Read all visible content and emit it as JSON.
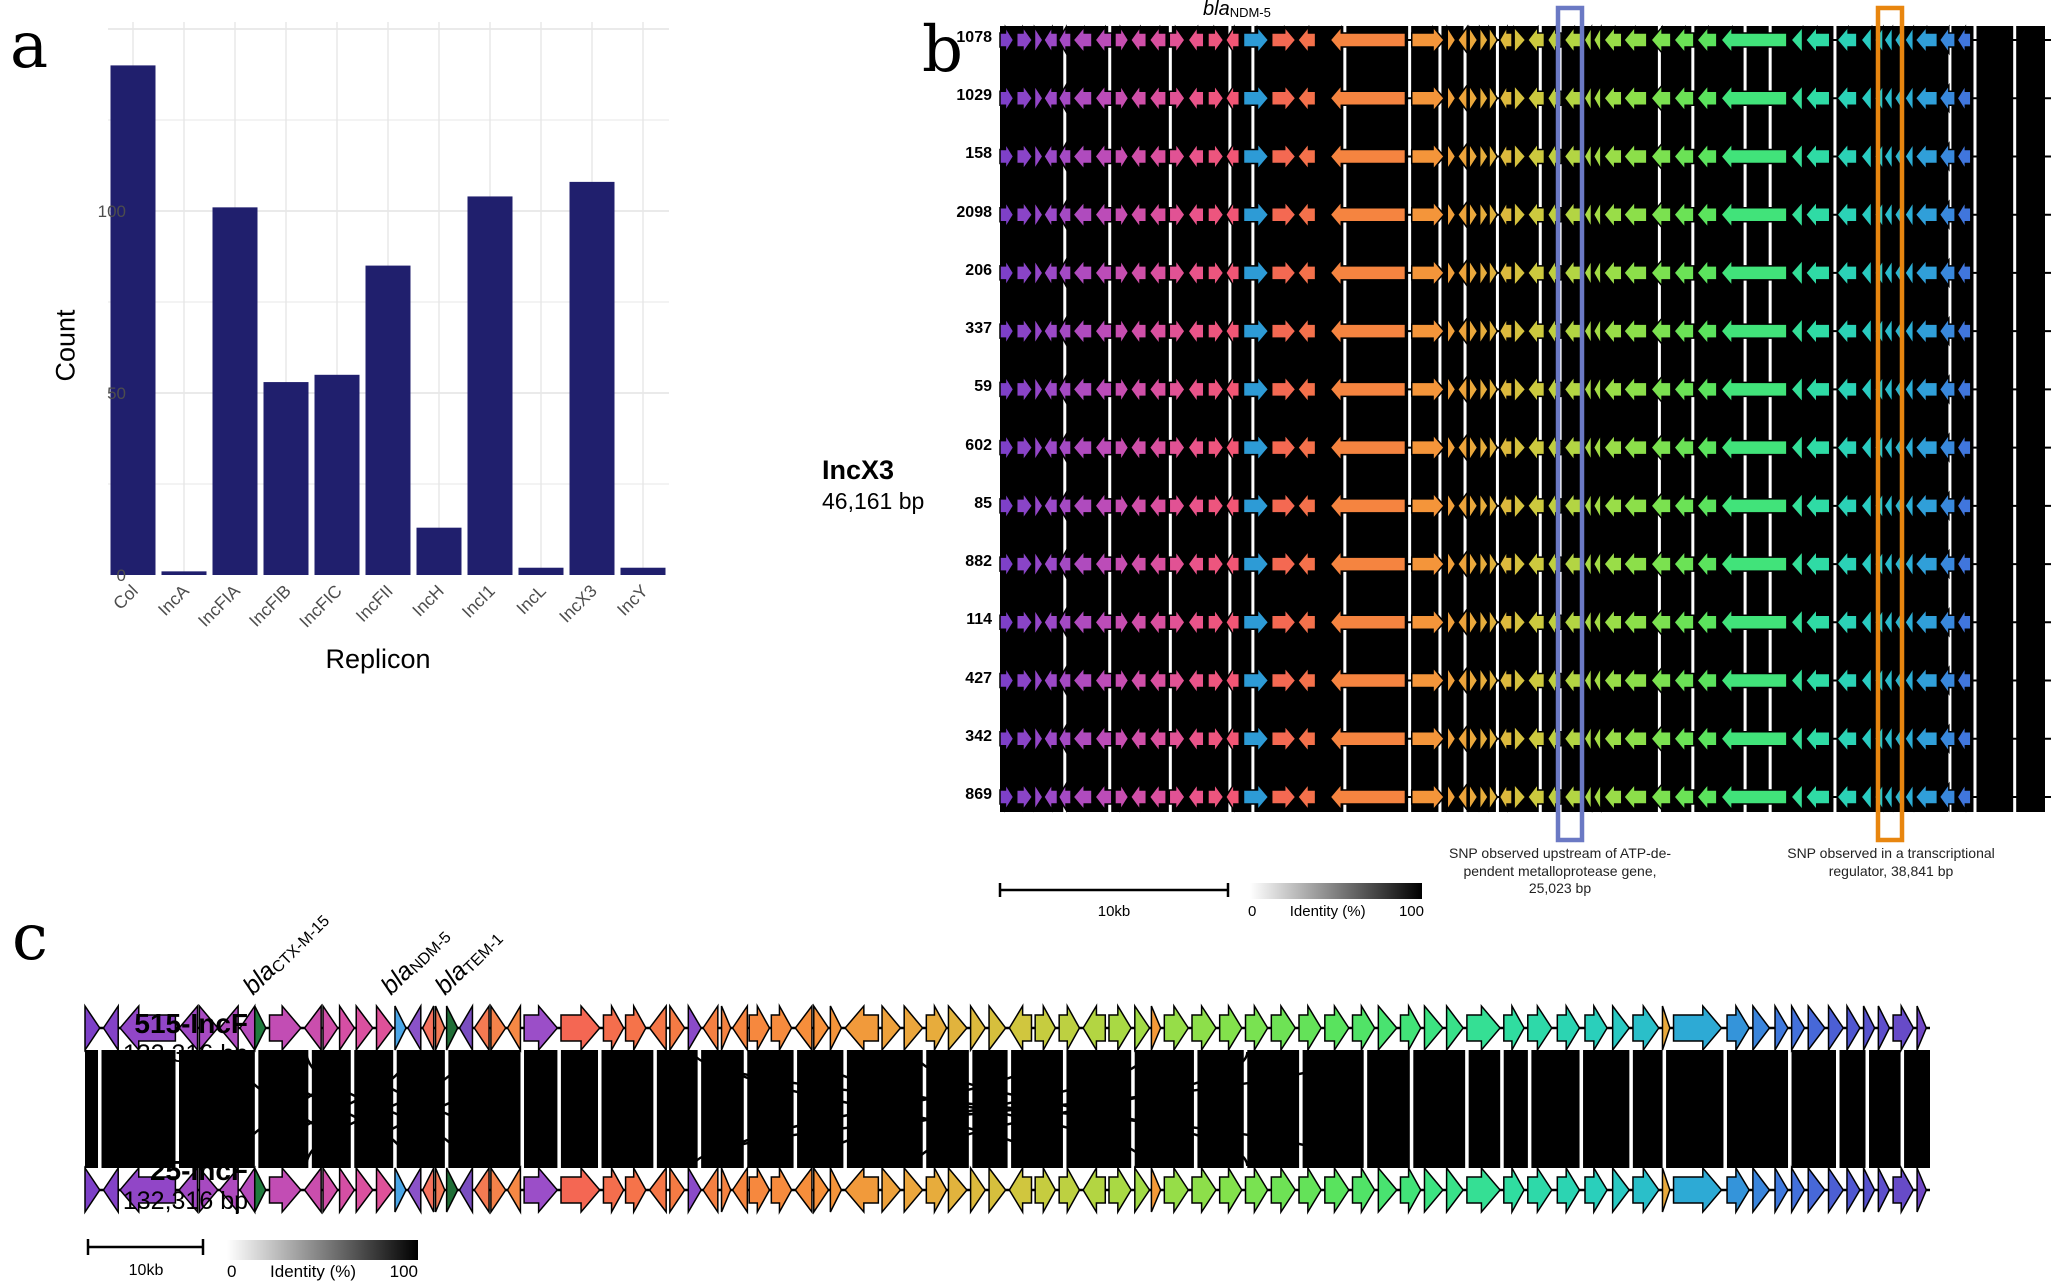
{
  "figure": {
    "panel_letters": {
      "a": "a",
      "b": "b",
      "c": "c"
    }
  },
  "chart_data": {
    "type": "bar",
    "title": "",
    "categories": [
      "Col",
      "IncA",
      "IncFIA",
      "IncFIB",
      "IncFIC",
      "IncFII",
      "IncH",
      "IncI1",
      "IncL",
      "IncX3",
      "IncY"
    ],
    "values": [
      140,
      1,
      101,
      53,
      55,
      85,
      13,
      104,
      2,
      108,
      2
    ],
    "xlabel": "Replicon",
    "ylabel": "Count",
    "yticks": [
      0,
      50,
      100
    ],
    "gridline_step": 25,
    "ylim": [
      0,
      150
    ],
    "bar_color": "#201f6d",
    "grid": true,
    "legend": "none"
  },
  "panel_b": {
    "name": "IncX3",
    "size_label": "46,161 bp",
    "gene_annotation": {
      "prefix": "bla",
      "sub": "NDM-5"
    },
    "row_labels": [
      "1078",
      "1029",
      "158",
      "2098",
      "206",
      "337",
      "59",
      "602",
      "85",
      "882",
      "114",
      "427",
      "342",
      "869"
    ],
    "highlight_boxes": [
      {
        "color": "#6b79c4",
        "note": "SNP observed upstream of ATP-de-\npendent metalloprotease gene,\n25,023 bp"
      },
      {
        "color": "#e8860f",
        "note": "SNP observed in a transcriptional\nregulator, 38,841 bp"
      }
    ],
    "scale_label": "10kb",
    "identity_legend": {
      "min": "0",
      "label": "Identity (%)",
      "max": "100"
    },
    "genes": [
      [
        0.0,
        0.013,
        1
      ],
      [
        0.016,
        0.015,
        1
      ],
      [
        0.033,
        0.008,
        1
      ],
      [
        0.042,
        0.013,
        -1
      ],
      [
        0.056,
        0.012,
        -1
      ],
      [
        0.07,
        0.018,
        -1
      ],
      [
        0.091,
        0.016,
        -1
      ],
      [
        0.11,
        0.013,
        1
      ],
      [
        0.125,
        0.015,
        -1
      ],
      [
        0.143,
        0.016,
        -1
      ],
      [
        0.162,
        0.015,
        1
      ],
      [
        0.18,
        0.015,
        -1
      ],
      [
        0.199,
        0.015,
        1
      ],
      [
        0.216,
        0.013,
        -1
      ],
      [
        0.233,
        0.024,
        1,
        "#2d9bd6"
      ],
      [
        0.26,
        0.023,
        1
      ],
      [
        0.285,
        0.017,
        -1
      ],
      [
        0.316,
        0.072,
        -1
      ],
      [
        0.394,
        0.031,
        1
      ],
      [
        0.428,
        0.008,
        1
      ],
      [
        0.438,
        0.009,
        -1
      ],
      [
        0.449,
        0.008,
        1
      ],
      [
        0.459,
        0.008,
        1
      ],
      [
        0.468,
        0.008,
        1
      ],
      [
        0.478,
        0.012,
        -1
      ],
      [
        0.492,
        0.011,
        1
      ],
      [
        0.505,
        0.016,
        -1
      ],
      [
        0.524,
        0.013,
        -1
      ],
      [
        0.54,
        0.016,
        -1
      ],
      [
        0.559,
        0.007,
        -1
      ],
      [
        0.568,
        0.007,
        -1
      ],
      [
        0.578,
        0.017,
        -1
      ],
      [
        0.597,
        0.022,
        -1
      ],
      [
        0.623,
        0.019,
        -1
      ],
      [
        0.645,
        0.019,
        -1
      ],
      [
        0.667,
        0.019,
        -1
      ],
      [
        0.69,
        0.063,
        -1
      ],
      [
        0.757,
        0.011,
        -1
      ],
      [
        0.771,
        0.023,
        -1
      ],
      [
        0.801,
        0.019,
        -1
      ],
      [
        0.824,
        0.01,
        -1
      ],
      [
        0.837,
        0.008,
        -1
      ],
      [
        0.846,
        0.008,
        -1
      ],
      [
        0.856,
        0.008,
        -1
      ],
      [
        0.866,
        0.008,
        -1
      ],
      [
        0.876,
        0.021,
        -1
      ],
      [
        0.899,
        0.015,
        -1
      ],
      [
        0.916,
        0.013,
        -1
      ]
    ],
    "gaps": [
      0.062,
      0.105,
      0.163,
      0.22,
      0.242,
      0.33,
      0.392,
      0.421,
      0.445,
      0.476,
      0.517,
      0.536,
      0.631,
      0.663,
      0.713,
      0.737,
      0.799,
      0.909,
      0.933,
      0.971
    ]
  },
  "panel_c": {
    "tracks": [
      {
        "name": "515-IncF",
        "size": "132,316 bp"
      },
      {
        "name": "25-IncF",
        "size": "132,316 bp"
      }
    ],
    "gene_annotations": [
      {
        "prefix": "bla",
        "sub": "CTX-M-15"
      },
      {
        "prefix": "bla",
        "sub": "NDM-5"
      },
      {
        "prefix": "bla",
        "sub": "TEM-1"
      }
    ],
    "scale_label": "10kb",
    "identity_legend": {
      "min": "0",
      "label": "Identity (%)",
      "max": "100"
    },
    "genes": [
      [
        0.0,
        0.008,
        1
      ],
      [
        0.01,
        0.008,
        -1
      ],
      [
        0.019,
        0.03,
        -1
      ],
      [
        0.051,
        0.01,
        -1
      ],
      [
        0.062,
        0.01,
        1
      ],
      [
        0.073,
        0.01,
        -1
      ],
      [
        0.084,
        0.008,
        -1
      ],
      [
        0.092,
        0.006,
        1,
        "#1e7a3c"
      ],
      [
        0.1,
        0.017,
        1
      ],
      [
        0.119,
        0.009,
        -1
      ],
      [
        0.129,
        0.008,
        1
      ],
      [
        0.138,
        0.008,
        1
      ],
      [
        0.147,
        0.009,
        1
      ],
      [
        0.158,
        0.009,
        1
      ],
      [
        0.168,
        0.006,
        1,
        "#4aa6e8"
      ],
      [
        0.175,
        0.007,
        -1,
        "#8a52c8"
      ],
      [
        0.183,
        0.006,
        -1,
        "#f4725e"
      ],
      [
        0.19,
        0.005,
        1,
        "#f27a56"
      ],
      [
        0.196,
        0.006,
        1,
        "#1f6e36"
      ],
      [
        0.203,
        0.007,
        -1,
        "#7a4ec0"
      ],
      [
        0.211,
        0.008,
        -1,
        "#f57a52"
      ],
      [
        0.22,
        0.008,
        1,
        "#f5824a"
      ],
      [
        0.229,
        0.007,
        -1,
        "#f58844"
      ],
      [
        0.238,
        0.018,
        1,
        "#9b4ec8"
      ],
      [
        0.258,
        0.021,
        1
      ],
      [
        0.281,
        0.011,
        1
      ],
      [
        0.293,
        0.011,
        1
      ],
      [
        0.306,
        0.009,
        -1
      ],
      [
        0.317,
        0.008,
        1
      ],
      [
        0.327,
        0.007,
        1,
        "#8a4ac8"
      ],
      [
        0.335,
        0.008,
        -1
      ],
      [
        0.345,
        0.005,
        1
      ],
      [
        0.351,
        0.008,
        -1
      ],
      [
        0.36,
        0.011,
        1
      ],
      [
        0.372,
        0.011,
        1
      ],
      [
        0.385,
        0.009,
        -1
      ],
      [
        0.395,
        0.008,
        1
      ],
      [
        0.404,
        0.006,
        1
      ],
      [
        0.412,
        0.018,
        -1
      ],
      [
        0.432,
        0.01,
        1
      ],
      [
        0.444,
        0.01,
        1
      ],
      [
        0.456,
        0.011,
        1
      ],
      [
        0.468,
        0.01,
        1
      ],
      [
        0.48,
        0.008,
        1
      ],
      [
        0.49,
        0.009,
        1
      ],
      [
        0.501,
        0.012,
        -1
      ],
      [
        0.515,
        0.011,
        1
      ],
      [
        0.528,
        0.011,
        1
      ],
      [
        0.541,
        0.012,
        -1
      ],
      [
        0.555,
        0.012,
        1
      ],
      [
        0.569,
        0.008,
        1
      ],
      [
        0.578,
        0.005,
        1,
        "#f59a38"
      ],
      [
        0.585,
        0.013,
        1
      ],
      [
        0.6,
        0.013,
        1
      ],
      [
        0.615,
        0.012,
        1
      ],
      [
        0.629,
        0.012,
        1
      ],
      [
        0.643,
        0.013,
        1
      ],
      [
        0.658,
        0.012,
        1
      ],
      [
        0.672,
        0.013,
        1
      ],
      [
        0.687,
        0.012,
        1
      ],
      [
        0.701,
        0.01,
        1
      ],
      [
        0.713,
        0.011,
        1
      ],
      [
        0.726,
        0.01,
        1
      ],
      [
        0.738,
        0.009,
        1
      ],
      [
        0.749,
        0.018,
        1
      ],
      [
        0.769,
        0.011,
        1
      ],
      [
        0.782,
        0.013,
        1
      ],
      [
        0.798,
        0.012,
        1
      ],
      [
        0.813,
        0.012,
        1
      ],
      [
        0.828,
        0.009,
        1
      ],
      [
        0.839,
        0.014,
        1
      ],
      [
        0.855,
        0.004,
        1,
        "#e8a93c"
      ],
      [
        0.861,
        0.026,
        1
      ],
      [
        0.89,
        0.012,
        1
      ],
      [
        0.904,
        0.009,
        1
      ],
      [
        0.916,
        0.007,
        1
      ],
      [
        0.925,
        0.007,
        1
      ],
      [
        0.934,
        0.009,
        1
      ],
      [
        0.945,
        0.008,
        1
      ],
      [
        0.955,
        0.007,
        1
      ],
      [
        0.964,
        0.006,
        1
      ],
      [
        0.972,
        0.006,
        1
      ],
      [
        0.98,
        0.011,
        1
      ],
      [
        0.993,
        0.005,
        1
      ]
    ],
    "gaps": [
      0.008,
      0.05,
      0.093,
      0.122,
      0.145,
      0.168,
      0.196,
      0.237,
      0.257,
      0.279,
      0.309,
      0.333,
      0.358,
      0.385,
      0.412,
      0.455,
      0.48,
      0.501,
      0.531,
      0.568,
      0.602,
      0.629,
      0.659,
      0.694,
      0.719,
      0.749,
      0.768,
      0.783,
      0.811,
      0.838,
      0.856,
      0.889,
      0.924,
      0.95,
      0.966,
      0.985
    ],
    "cross_links": [
      [
        0.082,
        0.14
      ],
      [
        0.14,
        0.082
      ],
      [
        0.1,
        0.175
      ],
      [
        0.175,
        0.1
      ],
      [
        0.12,
        0.205
      ],
      [
        0.205,
        0.12
      ],
      [
        0.148,
        0.232
      ],
      [
        0.232,
        0.148
      ],
      [
        0.34,
        0.52
      ],
      [
        0.52,
        0.34
      ],
      [
        0.395,
        0.575
      ],
      [
        0.575,
        0.395
      ],
      [
        0.45,
        0.63
      ],
      [
        0.63,
        0.45
      ],
      [
        0.33,
        0.685
      ],
      [
        0.685,
        0.33
      ]
    ]
  },
  "palette_stops": [
    [
      0.0,
      "#7a3fc8"
    ],
    [
      0.05,
      "#9c49c6"
    ],
    [
      0.1,
      "#bd4cb8"
    ],
    [
      0.15,
      "#d950a0"
    ],
    [
      0.19,
      "#ea5488"
    ],
    [
      0.23,
      "#f25670"
    ],
    [
      0.27,
      "#f46852"
    ],
    [
      0.32,
      "#f57b44"
    ],
    [
      0.4,
      "#f6913a"
    ],
    [
      0.46,
      "#e8ab3c"
    ],
    [
      0.51,
      "#cec83e"
    ],
    [
      0.56,
      "#aad944"
    ],
    [
      0.62,
      "#84e14c"
    ],
    [
      0.68,
      "#58e35e"
    ],
    [
      0.73,
      "#3ce380"
    ],
    [
      0.78,
      "#2fdca4"
    ],
    [
      0.83,
      "#29cbc2"
    ],
    [
      0.88,
      "#2da6d8"
    ],
    [
      0.92,
      "#3f78de"
    ],
    [
      0.96,
      "#5156d0"
    ],
    [
      1.0,
      "#7444c4"
    ]
  ]
}
